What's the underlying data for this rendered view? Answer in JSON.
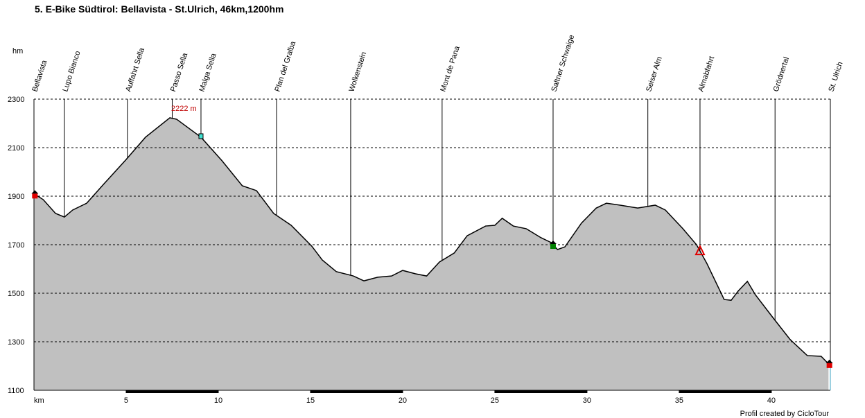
{
  "chart_data": {
    "type": "area",
    "title": "5. E-Bike Südtirol: Bellavista - St.Ulrich, 46km,1200hm",
    "ylabel": "hm",
    "xlabel": "km",
    "footer": "Profil created by CicloTour",
    "annotation": "2222 m",
    "color": "#c0c0c0",
    "line_color": "#000000",
    "grid": true,
    "xlim": [
      0,
      43.2
    ],
    "ylim": [
      1100,
      2300
    ],
    "xticks": [
      5,
      10,
      15,
      20,
      25,
      30,
      35,
      40
    ],
    "yticks": [
      1100,
      1300,
      1500,
      1700,
      1900,
      2100,
      2300
    ],
    "x": [
      0,
      0.5,
      1.17,
      1.65,
      2.1,
      2.86,
      3.8,
      5,
      6.05,
      7.37,
      7.74,
      9.06,
      10.2,
      11.3,
      12.07,
      13,
      13.95,
      15.07,
      15.64,
      16.4,
      17.33,
      17.9,
      18.65,
      19.4,
      20,
      20.7,
      21.3,
      22,
      22.8,
      23.5,
      24.5,
      25,
      25.4,
      26,
      26.7,
      27.5,
      28.05,
      28.4,
      28.8,
      29.7,
      30.5,
      31.05,
      31.8,
      32.75,
      33.7,
      34.25,
      35.2,
      35.94,
      36.5,
      37.44,
      37.82,
      38.2,
      38.7,
      39.13,
      40.08,
      41.02,
      41.95,
      42.7,
      43.1
    ],
    "values": [
      1910,
      1886,
      1829,
      1814,
      1843,
      1871,
      1951,
      2051,
      2143,
      2223,
      2217,
      2143,
      2046,
      1943,
      1923,
      1829,
      1780,
      1694,
      1637,
      1589,
      1571,
      1551,
      1566,
      1571,
      1594,
      1580,
      1571,
      1629,
      1666,
      1737,
      1777,
      1780,
      1809,
      1777,
      1766,
      1729,
      1709,
      1680,
      1691,
      1789,
      1851,
      1871,
      1863,
      1851,
      1863,
      1843,
      1766,
      1700,
      1623,
      1474,
      1471,
      1509,
      1549,
      1494,
      1400,
      1309,
      1243,
      1240,
      1209
    ],
    "waypoints": [
      {
        "name": "Bellavista",
        "km": 0
      },
      {
        "name": "Lupo Bianco",
        "km": 1.65
      },
      {
        "name": "Auffahrt Sella",
        "km": 5.07
      },
      {
        "name": "Passo Sella",
        "km": 7.5
      },
      {
        "name": "Malga Sella",
        "km": 9.06
      },
      {
        "name": "Plan del Gralba",
        "km": 13.16
      },
      {
        "name": "Wolkenstein",
        "km": 17.18
      },
      {
        "name": "Mont de Pana",
        "km": 22.14
      },
      {
        "name": "Saltner Schwaige",
        "km": 28.16
      },
      {
        "name": "Seiser Alm",
        "km": 33.3
      },
      {
        "name": "Almabfahrt",
        "km": 36.13
      },
      {
        "name": "Grödnertal",
        "km": 40.2
      },
      {
        "name": "St. Ulrich",
        "km": 43.2
      }
    ]
  }
}
